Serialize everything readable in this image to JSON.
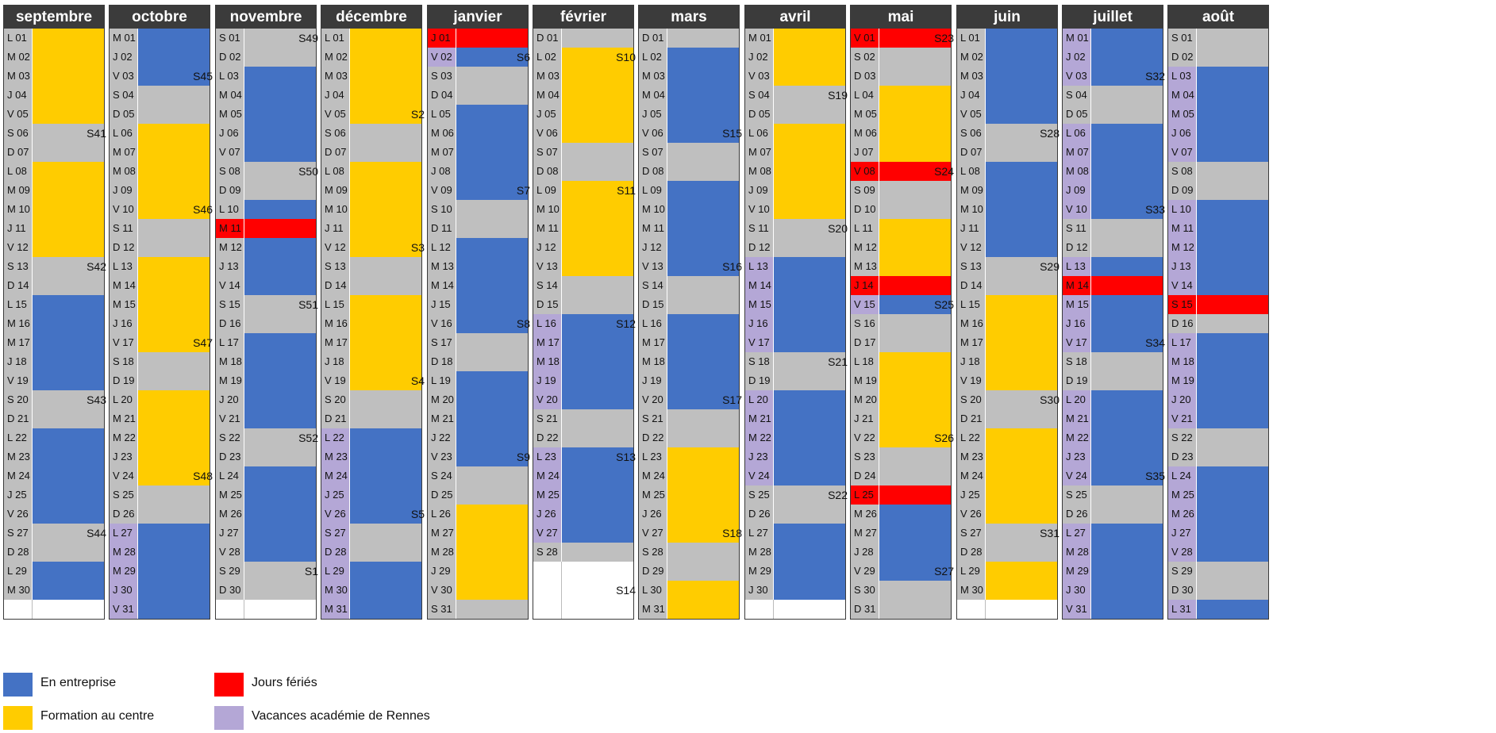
{
  "colors": {
    "E": "#4472c4",
    "F": "#ffcc00",
    "W": "#bfbfbf",
    "H": "#ff0000",
    "V": "#b4a7d6",
    "empty": "#ffffff"
  },
  "months": [
    {
      "name": "septembre",
      "days": [
        "L 01",
        "M 02",
        "M 03",
        "J 04",
        "V 05",
        "S 06",
        "D 07",
        "L 08",
        "M 09",
        "M 10",
        "J 11",
        "V 12",
        "S 13",
        "D 14",
        "L 15",
        "M 16",
        "M 17",
        "J 18",
        "V 19",
        "S 20",
        "D 21",
        "L 22",
        "M 23",
        "M 24",
        "J 25",
        "V 26",
        "S 27",
        "D 28",
        "L 29",
        "M 30"
      ],
      "label_states": "WWWWWWWWWWWWWWWWWWWWWWWWWWWWWW",
      "fill_states": "FFFFFWWFFFFFWWEEEEEWWEEEEEWWEE",
      "weeks": [
        {
          "label": "",
          "row": 0
        }
      ]
    },
    {
      "name": "octobre",
      "days": [
        "M 01",
        "J 02",
        "V 03",
        "S 04",
        "D 05",
        "L 06",
        "M 07",
        "M 08",
        "J 09",
        "V 10",
        "S 11",
        "D 12",
        "L 13",
        "M 14",
        "M 15",
        "J 16",
        "V 17",
        "S 18",
        "D 19",
        "L 20",
        "M 21",
        "M 22",
        "J 23",
        "V 24",
        "S 25",
        "D 26",
        "L 27",
        "M 28",
        "M 29",
        "J 30",
        "V 31"
      ],
      "label_states": "WWWWWWWWWWWWWWWWWWWWWWWWWWVVVVV",
      "fill_states": "EEEWWFFFFFWWFFFFFWWFFFFFWWEEEEE",
      "weeks": [
        {
          "label": "S41",
          "row": 5
        },
        {
          "label": "S42",
          "row": 12
        },
        {
          "label": "S43",
          "row": 19
        },
        {
          "label": "S44",
          "row": 26
        }
      ]
    },
    {
      "name": "novembre",
      "days": [
        "S 01",
        "D 02",
        "L 03",
        "M 04",
        "M 05",
        "J 06",
        "V 07",
        "S 08",
        "D 09",
        "L 10",
        "M 11",
        "M 12",
        "J 13",
        "V 14",
        "S 15",
        "D 16",
        "L 17",
        "M 18",
        "M 19",
        "J 20",
        "V 21",
        "S 22",
        "D 23",
        "L 24",
        "M 25",
        "M 26",
        "J 27",
        "V 28",
        "S 29",
        "D 30"
      ],
      "label_states": "WWWWWWWWWWHWWWWWWWWWWWWWWWWWWW",
      "fill_states": "WWEEEEEWWEHEEEWWEEEEEWWEEEEEWW",
      "weeks": [
        {
          "label": "S45",
          "row": 2
        },
        {
          "label": "S46",
          "row": 9
        },
        {
          "label": "S47",
          "row": 16
        },
        {
          "label": "S48",
          "row": 23
        }
      ]
    },
    {
      "name": "décembre",
      "days": [
        "L 01",
        "M 02",
        "M 03",
        "J 04",
        "V 05",
        "S 06",
        "D 07",
        "L 08",
        "M 09",
        "M 10",
        "J 11",
        "V 12",
        "S 13",
        "D 14",
        "L 15",
        "M 16",
        "M 17",
        "J 18",
        "V 19",
        "S 20",
        "D 21",
        "L 22",
        "M 23",
        "M 24",
        "J 25",
        "V 26",
        "S 27",
        "D 28",
        "L 29",
        "M 30",
        "M 31"
      ],
      "label_states": "WWWWWWWWWWWWWWWWWWWWWVVVVVVVVVV",
      "fill_states": "FFFFFWWFFFFFWWFFFFFWWEEEEEWWEEE",
      "weeks": [
        {
          "label": "S49",
          "row": 0
        },
        {
          "label": "S50",
          "row": 7
        },
        {
          "label": "S51",
          "row": 14
        },
        {
          "label": "S52",
          "row": 21
        },
        {
          "label": "S1",
          "row": 28
        }
      ]
    },
    {
      "name": "janvier",
      "days": [
        "J 01",
        "V 02",
        "S 03",
        "D 04",
        "L 05",
        "M 06",
        "M 07",
        "J 08",
        "V 09",
        "S 10",
        "D 11",
        "L 12",
        "M 13",
        "M 14",
        "J 15",
        "V 16",
        "S 17",
        "D 18",
        "L 19",
        "M 20",
        "M 21",
        "J 22",
        "V 23",
        "S 24",
        "D 25",
        "L 26",
        "M 27",
        "M 28",
        "J 29",
        "V 30",
        "S 31"
      ],
      "label_states": "HVWWWWWWWWWWWWWWWWWWWWWWWWWWWWW",
      "fill_states": "HEWWEEEEEWWEEEEEWWEEEEEWWFFFFFW",
      "weeks": [
        {
          "label": "S2",
          "row": 4
        },
        {
          "label": "S3",
          "row": 11
        },
        {
          "label": "S4",
          "row": 18
        },
        {
          "label": "S5",
          "row": 25
        }
      ]
    },
    {
      "name": "février",
      "days": [
        "D 01",
        "L 02",
        "M 03",
        "M 04",
        "J 05",
        "V 06",
        "S 07",
        "D 08",
        "L 09",
        "M 10",
        "M 11",
        "J 12",
        "V 13",
        "S 14",
        "D 15",
        "L 16",
        "M 17",
        "M 18",
        "J 19",
        "V 20",
        "S 21",
        "D 22",
        "L 23",
        "M 24",
        "M 25",
        "J 26",
        "V 27",
        "S 28"
      ],
      "label_states": "WWWWWWWWWWWWWWWVVVVVWWVVVVVW",
      "fill_states": "WFFFFFWWFFFFFWWEEEEEWWEEEEEW",
      "weeks": [
        {
          "label": "S6",
          "row": 1
        },
        {
          "label": "S7",
          "row": 8
        },
        {
          "label": "S8",
          "row": 15
        },
        {
          "label": "S9",
          "row": 22
        }
      ]
    },
    {
      "name": "mars",
      "days": [
        "D 01",
        "L 02",
        "M 03",
        "M 04",
        "J 05",
        "V 06",
        "S 07",
        "D 08",
        "L 09",
        "M 10",
        "M 11",
        "J 12",
        "V 13",
        "S 14",
        "D 15",
        "L 16",
        "M 17",
        "M 18",
        "J 19",
        "V 20",
        "S 21",
        "D 22",
        "L 23",
        "M 24",
        "M 25",
        "J 26",
        "V 27",
        "S 28",
        "D 29",
        "L 30",
        "M 31"
      ],
      "label_states": "WWWWWWWWWWWWWWWWWWWWWWWWWWWWWWW",
      "fill_states": "WEEEEEWWEEEEEWWEEEEEWWFFFFFWWFF",
      "weeks": [
        {
          "label": "S10",
          "row": 1
        },
        {
          "label": "S11",
          "row": 8
        },
        {
          "label": "S12",
          "row": 15
        },
        {
          "label": "S13",
          "row": 22
        },
        {
          "label": "S14",
          "row": 29
        }
      ]
    },
    {
      "name": "avril",
      "days": [
        "M 01",
        "J 02",
        "V 03",
        "S 04",
        "D 05",
        "L 06",
        "M 07",
        "M 08",
        "J 09",
        "V 10",
        "S 11",
        "D 12",
        "L 13",
        "M 14",
        "M 15",
        "J 16",
        "V 17",
        "S 18",
        "D 19",
        "L 20",
        "M 21",
        "M 22",
        "J 23",
        "V 24",
        "S 25",
        "D 26",
        "L 27",
        "M 28",
        "M 29",
        "J 30"
      ],
      "label_states": "WWWWWWWWWWWWVVVVVWWVVVVVWWWWWW",
      "fill_states": "FFFWWFFFFFWWEEEEEWWEEEEEWWEEEE",
      "weeks": [
        {
          "label": "S15",
          "row": 5
        },
        {
          "label": "S16",
          "row": 12
        },
        {
          "label": "S17",
          "row": 19
        },
        {
          "label": "S18",
          "row": 26
        }
      ]
    },
    {
      "name": "mai",
      "days": [
        "V 01",
        "S 02",
        "D 03",
        "L 04",
        "M 05",
        "M 06",
        "J 07",
        "V 08",
        "S 09",
        "D 10",
        "L 11",
        "M 12",
        "M 13",
        "J 14",
        "V 15",
        "S 16",
        "D 17",
        "L 18",
        "M 19",
        "M 20",
        "J 21",
        "V 22",
        "S 23",
        "D 24",
        "L 25",
        "M 26",
        "M 27",
        "J 28",
        "V 29",
        "S 30",
        "D 31"
      ],
      "label_states": "HWWWWWWHWWWWWHVWWWWWWWWWHWWWWWW",
      "fill_states": "HWWFFFFHWWFFFHEWWFFFFFWWHEEEEWW",
      "weeks": [
        {
          "label": "S19",
          "row": 3
        },
        {
          "label": "S20",
          "row": 10
        },
        {
          "label": "S21",
          "row": 17
        },
        {
          "label": "S22",
          "row": 24
        }
      ]
    },
    {
      "name": "juin",
      "days": [
        "L 01",
        "M 02",
        "M 03",
        "J 04",
        "V 05",
        "S 06",
        "D 07",
        "L 08",
        "M 09",
        "M 10",
        "J 11",
        "V 12",
        "S 13",
        "D 14",
        "L 15",
        "M 16",
        "M 17",
        "J 18",
        "V 19",
        "S 20",
        "D 21",
        "L 22",
        "M 23",
        "M 24",
        "J 25",
        "V 26",
        "S 27",
        "D 28",
        "L 29",
        "M 30"
      ],
      "label_states": "WWWWWWWWWWWWWWWWWWWWWWWWWWWWWW",
      "fill_states": "EEEEEWWEEEEEWWFFFFFWWFFFFFWWFF",
      "weeks": [
        {
          "label": "S23",
          "row": 0
        },
        {
          "label": "S24",
          "row": 7
        },
        {
          "label": "S25",
          "row": 14
        },
        {
          "label": "S26",
          "row": 21
        },
        {
          "label": "S27",
          "row": 28
        }
      ]
    },
    {
      "name": "juillet",
      "days": [
        "M 01",
        "J 02",
        "V 03",
        "S 04",
        "D 05",
        "L 06",
        "M 07",
        "M 08",
        "J 09",
        "V 10",
        "S 11",
        "D 12",
        "L 13",
        "M 14",
        "M 15",
        "J 16",
        "V 17",
        "S 18",
        "D 19",
        "L 20",
        "M 21",
        "M 22",
        "J 23",
        "V 24",
        "S 25",
        "D 26",
        "L 27",
        "M 28",
        "M 29",
        "J 30",
        "V 31"
      ],
      "label_states": "VVVWWVVVVVWWVHVVVWWVVVVVWWVVVVV",
      "fill_states": "EEEWWEEEEEWWEHEEEWWEEEEEWWEEEEE",
      "weeks": [
        {
          "label": "S28",
          "row": 5
        },
        {
          "label": "S29",
          "row": 12
        },
        {
          "label": "S30",
          "row": 19
        },
        {
          "label": "S31",
          "row": 26
        }
      ]
    },
    {
      "name": "août",
      "days": [
        "S 01",
        "D 02",
        "L 03",
        "M 04",
        "M 05",
        "J 06",
        "V 07",
        "S 08",
        "D 09",
        "L 10",
        "M 11",
        "M 12",
        "J 13",
        "V 14",
        "S 15",
        "D 16",
        "L 17",
        "M 18",
        "M 19",
        "J 20",
        "V 21",
        "S 22",
        "D 23",
        "L 24",
        "M 25",
        "M 26",
        "J 27",
        "V 28",
        "S 29",
        "D 30",
        "L 31"
      ],
      "label_states": "WWVVVVVWWVVVVVHWVVVVVWWVVVVVWWV",
      "fill_states": "WWEEEEEWWEEEEEHWEEEEEWWEEEEEWWE",
      "weeks": [
        {
          "label": "S32",
          "row": 2
        },
        {
          "label": "S33",
          "row": 9
        },
        {
          "label": "S34",
          "row": 16
        },
        {
          "label": "S35",
          "row": 23
        }
      ]
    }
  ],
  "legend": [
    {
      "label": "En entreprise",
      "color": "#4472c4"
    },
    {
      "label": "Jours fériés",
      "color": "#ff0000"
    },
    {
      "label": "Formation au centre",
      "color": "#ffcc00"
    },
    {
      "label": "Vacances académie de Rennes",
      "color": "#b4a7d6"
    }
  ]
}
